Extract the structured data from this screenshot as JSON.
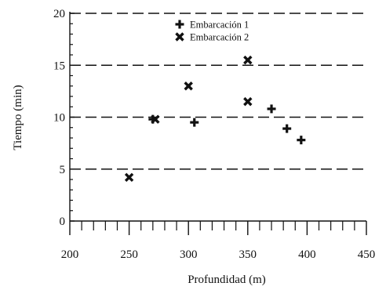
{
  "chart_data": {
    "type": "scatter",
    "title": "",
    "xlabel": "Profundidad (m)",
    "ylabel": "Tiempo (min)",
    "xlim": [
      200,
      450
    ],
    "ylim": [
      0,
      20
    ],
    "x_ticks": [
      200,
      250,
      300,
      350,
      400,
      450
    ],
    "y_ticks": [
      0,
      5,
      10,
      15,
      20
    ],
    "grid": "horizontal dashed",
    "legend_position": "top-center",
    "series": [
      {
        "name": "Embarcación 1",
        "marker": "plus",
        "color": "#111111",
        "points": [
          {
            "x": 270,
            "y": 9.8
          },
          {
            "x": 305,
            "y": 9.5
          },
          {
            "x": 370,
            "y": 10.8
          },
          {
            "x": 383,
            "y": 8.9
          },
          {
            "x": 395,
            "y": 7.8
          }
        ]
      },
      {
        "name": "Embarcación 2",
        "marker": "cross",
        "color": "#111111",
        "points": [
          {
            "x": 250,
            "y": 4.2
          },
          {
            "x": 272,
            "y": 9.8
          },
          {
            "x": 300,
            "y": 13.0
          },
          {
            "x": 350,
            "y": 15.5
          },
          {
            "x": 350,
            "y": 11.5
          }
        ]
      }
    ]
  }
}
